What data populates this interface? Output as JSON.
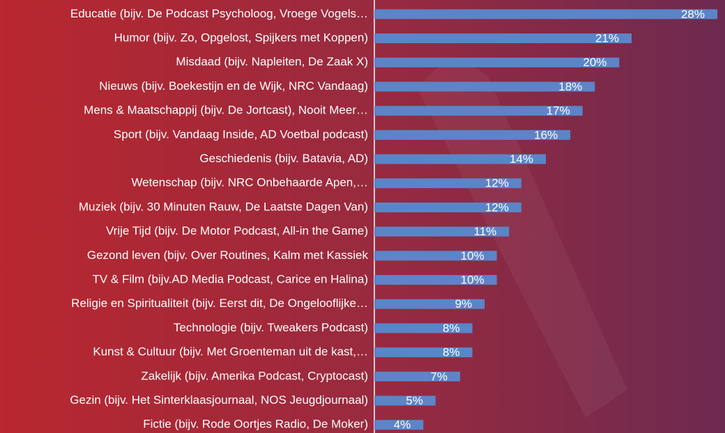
{
  "chart_data": {
    "type": "barh",
    "categories": [
      "Educatie (bijv. De Podcast Psycholoog, Vroege Vogels…",
      "Humor (bijv. Zo, Opgelost, Spijkers met Koppen)",
      "Misdaad (bijv. Napleiten, De Zaak X)",
      "Nieuws (bijv. Boekestijn en de Wijk, NRC Vandaag)",
      "Mens & Maatschappij (bijv. De Jortcast), Nooit Meer…",
      "Sport (bijv. Vandaag Inside, AD Voetbal podcast)",
      "Geschiedenis (bijv. Batavia, AD)",
      "Wetenschap (bijv. NRC Onbehaarde Apen,…",
      "Muziek (bijv. 30 Minuten Rauw, De Laatste Dagen Van)",
      "Vrije Tijd (bijv. De Motor Podcast, All-in the Game)",
      "Gezond leven (bijv. Over Routines, Kalm met Kassiek",
      "TV & Film (bijv.AD Media Podcast, Carice en Halina)",
      "Religie en Spiritualiteit (bijv. Eerst dit, De Ongelooflijke…",
      "Technologie (bijv. Tweakers Podcast)",
      "Kunst & Cultuur (bijv. Met Groenteman uit de kast,…",
      "Zakelijk (bijv. Amerika Podcast, Cryptocast)",
      "Gezin (bijv. Het Sinterklaasjournaal, NOS Jeugdjournaal)",
      "Fictie (bijv. Rode Oortjes Radio, De Moker)"
    ],
    "values": [
      28,
      21,
      20,
      18,
      17,
      16,
      14,
      12,
      12,
      11,
      10,
      10,
      9,
      8,
      8,
      7,
      5,
      4
    ],
    "value_labels": [
      "28%",
      "21%",
      "20%",
      "18%",
      "17%",
      "16%",
      "14%",
      "12%",
      "12%",
      "11%",
      "10%",
      "10%",
      "9%",
      "8%",
      "8%",
      "7%",
      "5%",
      "4%"
    ],
    "color": "#5b85c8",
    "xlim": [
      0,
      28
    ]
  }
}
